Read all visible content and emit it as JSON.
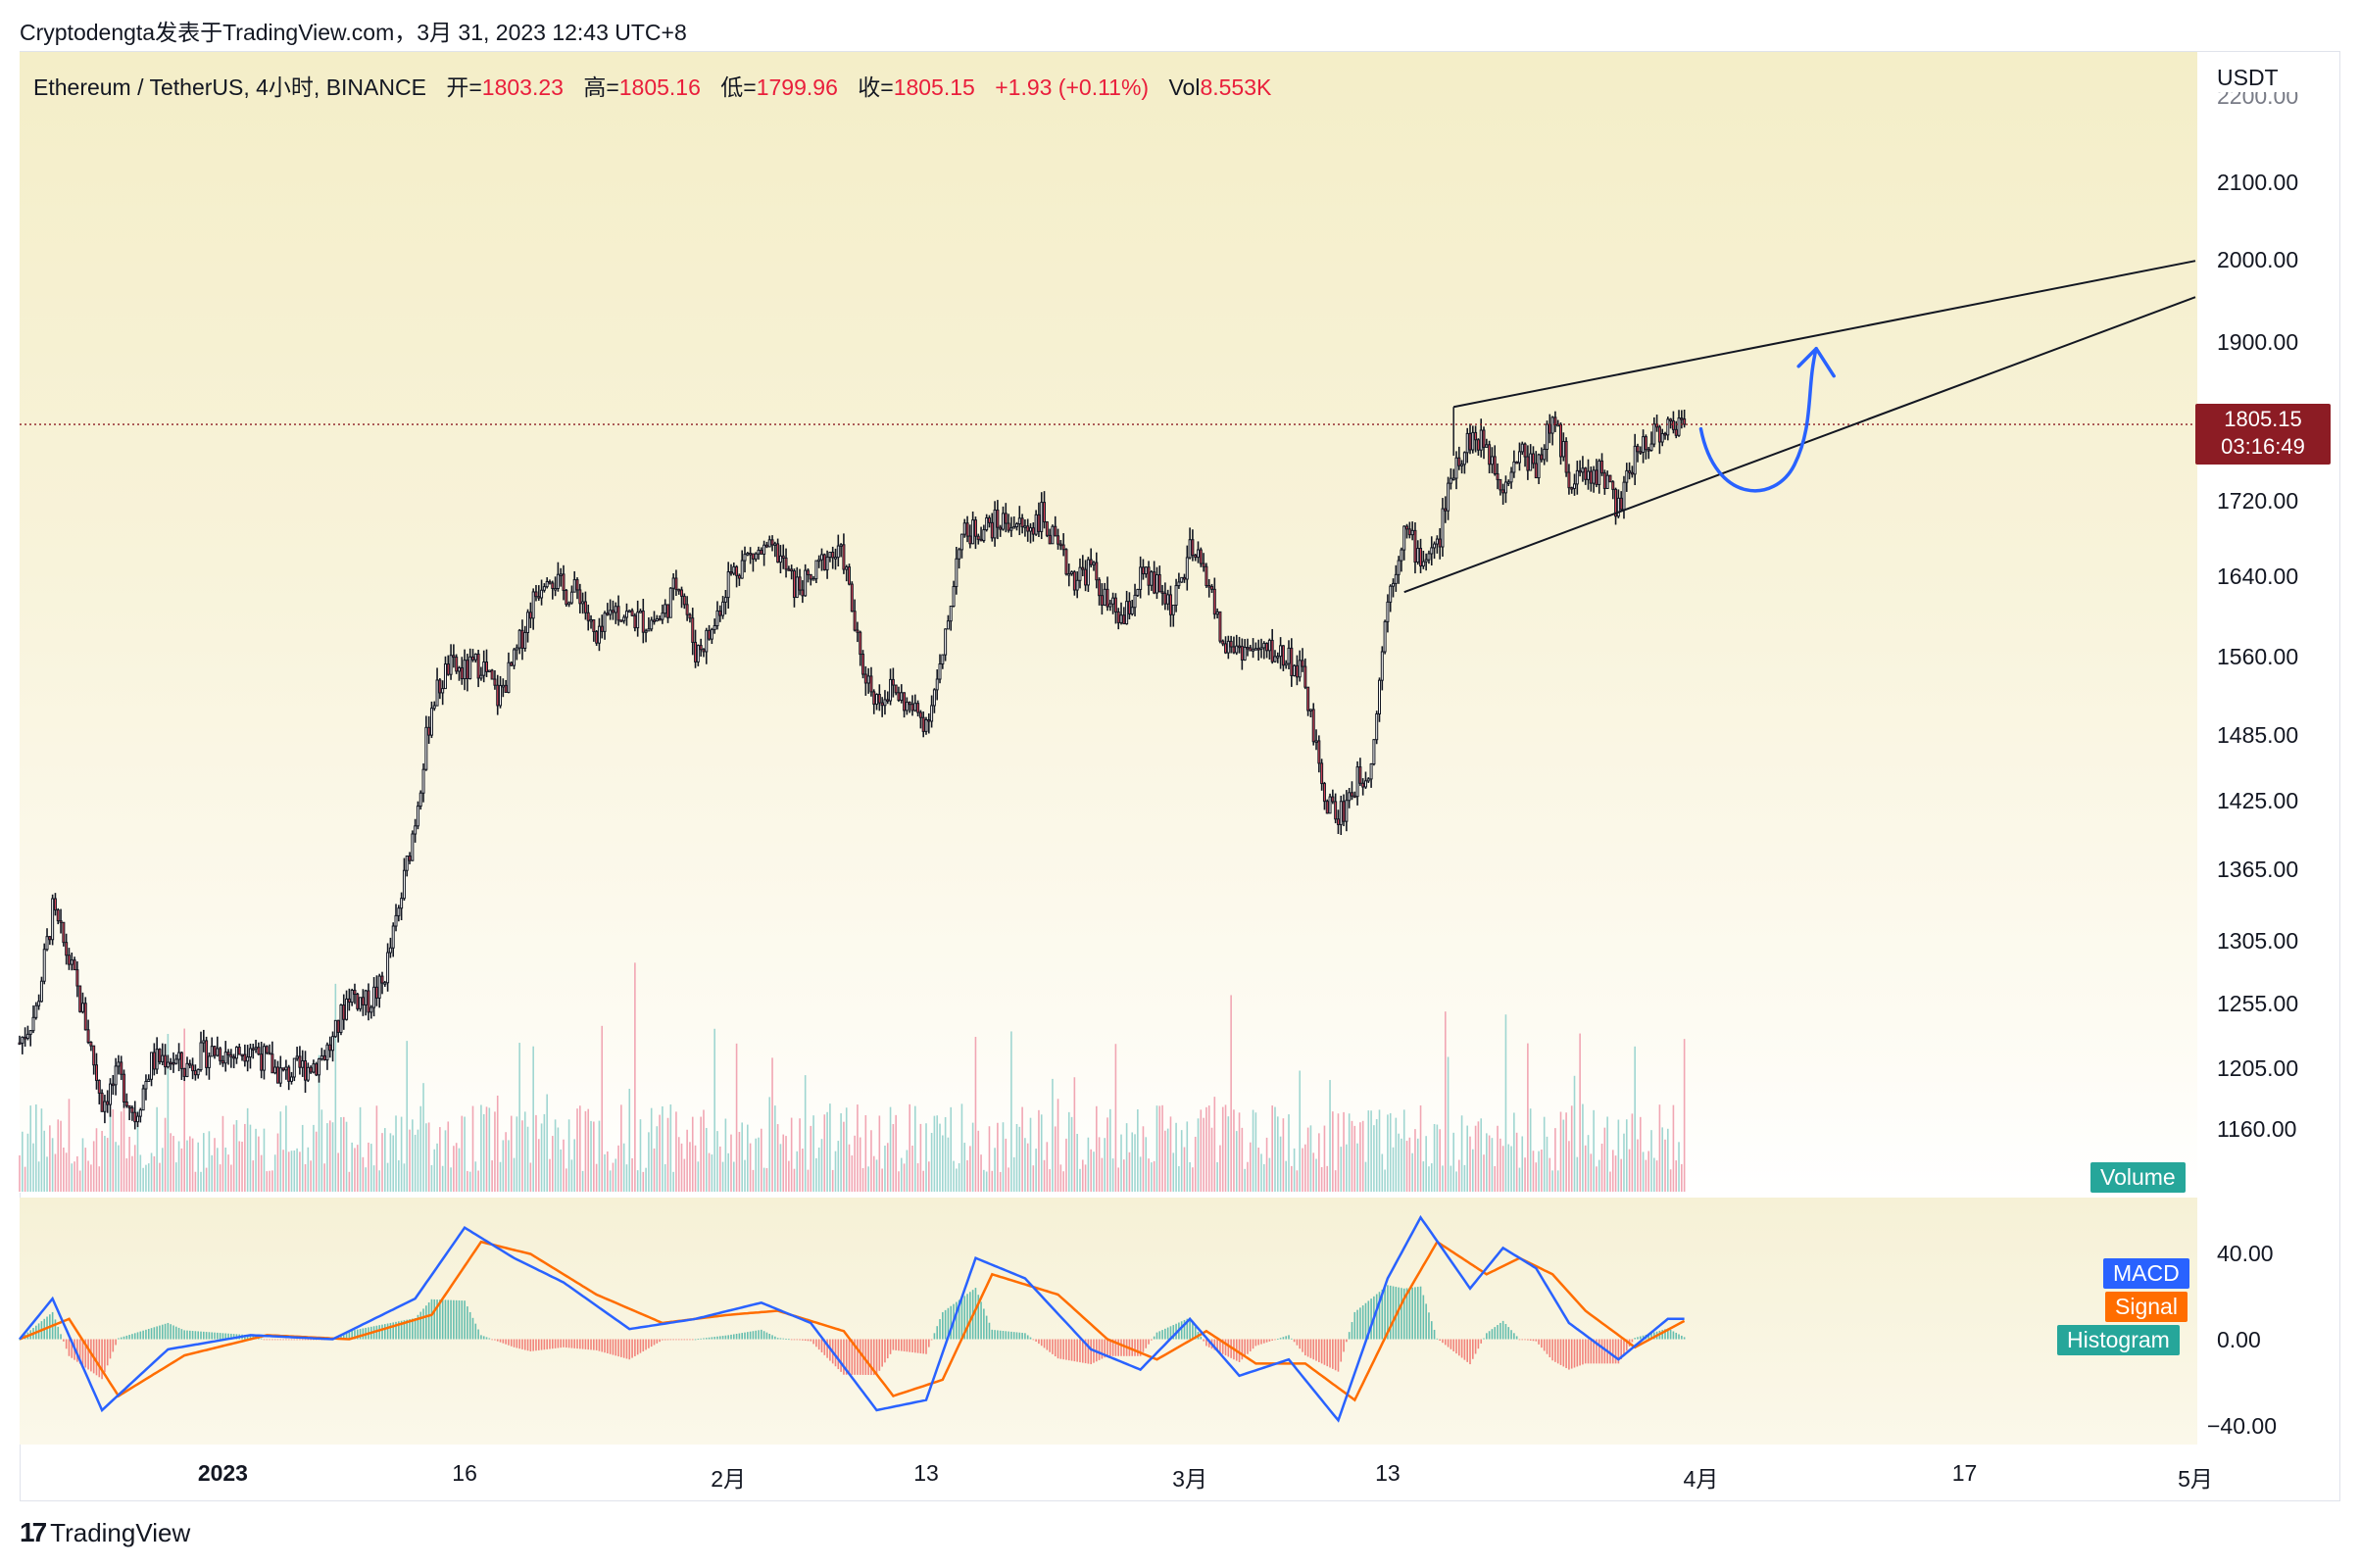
{
  "header": {
    "publish_line": "Cryptodengta发表于TradingView.com，3月 31, 2023 12:43 UTC+8"
  },
  "legend": {
    "symbol": "Ethereum / TetherUS, 4小时, BINANCE",
    "open_label": "开=",
    "open": "1803.23",
    "high_label": "高=",
    "high": "1805.16",
    "low_label": "低=",
    "low": "1799.96",
    "close_label": "收=",
    "close": "1805.15",
    "change": "+1.93 (+0.11%)",
    "vol_label": "Vol",
    "vol": "8.553K"
  },
  "axis": {
    "currency": "USDT",
    "partial_top_tick": "2200.00",
    "current_price": "1805.15",
    "countdown": "03:16:49",
    "macd_ticks": [
      "40.00",
      "0.00",
      "−40.00"
    ]
  },
  "panes": {
    "volume": "Volume",
    "macd": "MACD",
    "signal": "Signal",
    "histogram": "Histogram"
  },
  "footer": {
    "brand": "TradingView",
    "brand_mark": "17"
  },
  "colors": {
    "up": "#ffffff",
    "down": "#e0455a",
    "wick": "#131722",
    "vol_up": "#9fd6d1",
    "vol_down": "#f1a6b3",
    "macd": "#2962ff",
    "signal": "#ff6d00",
    "hist_up": "#26a69a",
    "hist_down": "#ef5350",
    "projection": "#2962ff",
    "price_tag": "#8c1c24"
  },
  "chart_data": {
    "type": "candlestick",
    "title": "Ethereum / TetherUS, 4小时, BINANCE",
    "ylabel": "USDT",
    "y_scale": "log",
    "ylim": [
      1120,
      2215
    ],
    "y_ticks": [
      2100,
      2000,
      1900,
      1720,
      1640,
      1560,
      1485,
      1425,
      1365,
      1305,
      1255,
      1205,
      1160
    ],
    "x_ticks": [
      {
        "label": "2023",
        "date": "2023-01-01",
        "bold": true
      },
      {
        "label": "16",
        "date": "2023-01-16"
      },
      {
        "label": "2月",
        "date": "2023-02-01"
      },
      {
        "label": "13",
        "date": "2023-02-13"
      },
      {
        "label": "3月",
        "date": "2023-03-01"
      },
      {
        "label": "13",
        "date": "2023-03-13"
      },
      {
        "label": "4月",
        "date": "2023-04-01"
      },
      {
        "label": "17",
        "date": "2023-04-17"
      },
      {
        "label": "5月",
        "date": "2023-05-01"
      }
    ],
    "xlim": [
      "2022-12-20",
      "2023-05-01"
    ],
    "current_price": 1805.15,
    "price_path": [
      [
        "2022-12-20",
        1225
      ],
      [
        "2022-12-21",
        1250
      ],
      [
        "2022-12-22",
        1330
      ],
      [
        "2022-12-23",
        1290
      ],
      [
        "2022-12-24",
        1240
      ],
      [
        "2022-12-25",
        1180
      ],
      [
        "2022-12-26",
        1200
      ],
      [
        "2022-12-27",
        1170
      ],
      [
        "2022-12-28",
        1210
      ],
      [
        "2022-12-29",
        1215
      ],
      [
        "2022-12-30",
        1205
      ],
      [
        "2022-12-31",
        1215
      ],
      [
        "2023-01-01",
        1220
      ],
      [
        "2023-01-02",
        1215
      ],
      [
        "2023-01-03",
        1225
      ],
      [
        "2023-01-04",
        1210
      ],
      [
        "2023-01-05",
        1200
      ],
      [
        "2023-01-06",
        1205
      ],
      [
        "2023-01-07",
        1210
      ],
      [
        "2023-01-08",
        1225
      ],
      [
        "2023-01-09",
        1265
      ],
      [
        "2023-01-10",
        1255
      ],
      [
        "2023-01-11",
        1270
      ],
      [
        "2023-01-12",
        1330
      ],
      [
        "2023-01-13",
        1410
      ],
      [
        "2023-01-14",
        1515
      ],
      [
        "2023-01-15",
        1550
      ],
      [
        "2023-01-16",
        1545
      ],
      [
        "2023-01-17",
        1555
      ],
      [
        "2023-01-18",
        1520
      ],
      [
        "2023-01-19",
        1555
      ],
      [
        "2023-01-20",
        1610
      ],
      [
        "2023-01-21",
        1650
      ],
      [
        "2023-01-22",
        1625
      ],
      [
        "2023-01-23",
        1625
      ],
      [
        "2023-01-24",
        1570
      ],
      [
        "2023-01-25",
        1610
      ],
      [
        "2023-01-26",
        1600
      ],
      [
        "2023-01-27",
        1595
      ],
      [
        "2023-01-28",
        1600
      ],
      [
        "2023-01-29",
        1640
      ],
      [
        "2023-01-30",
        1565
      ],
      [
        "2023-01-31",
        1585
      ],
      [
        "2023-02-01",
        1640
      ],
      [
        "2023-02-02",
        1660
      ],
      [
        "2023-02-03",
        1665
      ],
      [
        "2023-02-04",
        1665
      ],
      [
        "2023-02-05",
        1630
      ],
      [
        "2023-02-06",
        1635
      ],
      [
        "2023-02-07",
        1665
      ],
      [
        "2023-02-08",
        1660
      ],
      [
        "2023-02-09",
        1555
      ],
      [
        "2023-02-10",
        1520
      ],
      [
        "2023-02-11",
        1530
      ],
      [
        "2023-02-12",
        1510
      ],
      [
        "2023-02-13",
        1500
      ],
      [
        "2023-02-14",
        1555
      ],
      [
        "2023-02-15",
        1680
      ],
      [
        "2023-02-16",
        1690
      ],
      [
        "2023-02-17",
        1695
      ],
      [
        "2023-02-18",
        1700
      ],
      [
        "2023-02-19",
        1690
      ],
      [
        "2023-02-20",
        1705
      ],
      [
        "2023-02-21",
        1665
      ],
      [
        "2023-02-22",
        1640
      ],
      [
        "2023-02-23",
        1650
      ],
      [
        "2023-02-24",
        1610
      ],
      [
        "2023-02-25",
        1595
      ],
      [
        "2023-02-26",
        1640
      ],
      [
        "2023-02-27",
        1630
      ],
      [
        "2023-02-28",
        1610
      ],
      [
        "2023-03-01",
        1665
      ],
      [
        "2023-03-02",
        1645
      ],
      [
        "2023-03-03",
        1570
      ],
      [
        "2023-03-04",
        1570
      ],
      [
        "2023-03-05",
        1565
      ],
      [
        "2023-03-06",
        1565
      ],
      [
        "2023-03-07",
        1560
      ],
      [
        "2023-03-08",
        1535
      ],
      [
        "2023-03-09",
        1435
      ],
      [
        "2023-03-10",
        1410
      ],
      [
        "2023-03-11",
        1440
      ],
      [
        "2023-03-12",
        1460
      ],
      [
        "2023-03-13",
        1620
      ],
      [
        "2023-03-14",
        1690
      ],
      [
        "2023-03-15",
        1660
      ],
      [
        "2023-03-16",
        1670
      ],
      [
        "2023-03-17",
        1760
      ],
      [
        "2023-03-18",
        1790
      ],
      [
        "2023-03-19",
        1780
      ],
      [
        "2023-03-20",
        1740
      ],
      [
        "2023-03-21",
        1775
      ],
      [
        "2023-03-22",
        1760
      ],
      [
        "2023-03-23",
        1810
      ],
      [
        "2023-03-24",
        1750
      ],
      [
        "2023-03-25",
        1745
      ],
      [
        "2023-03-26",
        1755
      ],
      [
        "2023-03-27",
        1710
      ],
      [
        "2023-03-28",
        1770
      ],
      [
        "2023-03-29",
        1795
      ],
      [
        "2023-03-30",
        1800
      ],
      [
        "2023-03-31",
        1805.15
      ]
    ],
    "key_levels": {
      "jan_low": 1150,
      "dec_high": 1350,
      "jan_high": 1700,
      "feb_high": 1740,
      "mar10_low": 1370,
      "mar_high": 1835,
      "mar28_low": 1685
    },
    "macd": {
      "macd": [
        [
          "2022-12-20",
          0
        ],
        [
          "2022-12-22",
          20
        ],
        [
          "2022-12-25",
          -35
        ],
        [
          "2022-12-29",
          -5
        ],
        [
          "2023-01-03",
          2
        ],
        [
          "2023-01-08",
          0
        ],
        [
          "2023-01-13",
          20
        ],
        [
          "2023-01-16",
          55
        ],
        [
          "2023-01-19",
          40
        ],
        [
          "2023-01-22",
          28
        ],
        [
          "2023-01-26",
          5
        ],
        [
          "2023-01-30",
          10
        ],
        [
          "2023-02-03",
          18
        ],
        [
          "2023-02-06",
          8
        ],
        [
          "2023-02-10",
          -35
        ],
        [
          "2023-02-13",
          -30
        ],
        [
          "2023-02-16",
          40
        ],
        [
          "2023-02-19",
          30
        ],
        [
          "2023-02-23",
          -5
        ],
        [
          "2023-02-26",
          -15
        ],
        [
          "2023-03-01",
          10
        ],
        [
          "2023-03-04",
          -18
        ],
        [
          "2023-03-07",
          -10
        ],
        [
          "2023-03-10",
          -40
        ],
        [
          "2023-03-13",
          30
        ],
        [
          "2023-03-15",
          60
        ],
        [
          "2023-03-18",
          25
        ],
        [
          "2023-03-20",
          45
        ],
        [
          "2023-03-22",
          35
        ],
        [
          "2023-03-24",
          8
        ],
        [
          "2023-03-27",
          -10
        ],
        [
          "2023-03-30",
          10
        ],
        [
          "2023-03-31",
          10
        ]
      ],
      "signal": [
        [
          "2022-12-20",
          0
        ],
        [
          "2022-12-23",
          10
        ],
        [
          "2022-12-26",
          -28
        ],
        [
          "2022-12-30",
          -8
        ],
        [
          "2023-01-04",
          2
        ],
        [
          "2023-01-09",
          0
        ],
        [
          "2023-01-14",
          12
        ],
        [
          "2023-01-17",
          48
        ],
        [
          "2023-01-20",
          42
        ],
        [
          "2023-01-24",
          22
        ],
        [
          "2023-01-28",
          8
        ],
        [
          "2023-02-01",
          12
        ],
        [
          "2023-02-04",
          14
        ],
        [
          "2023-02-08",
          4
        ],
        [
          "2023-02-11",
          -28
        ],
        [
          "2023-02-14",
          -20
        ],
        [
          "2023-02-17",
          32
        ],
        [
          "2023-02-21",
          22
        ],
        [
          "2023-02-24",
          0
        ],
        [
          "2023-02-27",
          -10
        ],
        [
          "2023-03-02",
          4
        ],
        [
          "2023-03-05",
          -12
        ],
        [
          "2023-03-08",
          -12
        ],
        [
          "2023-03-11",
          -30
        ],
        [
          "2023-03-14",
          20
        ],
        [
          "2023-03-16",
          48
        ],
        [
          "2023-03-19",
          32
        ],
        [
          "2023-03-21",
          40
        ],
        [
          "2023-03-23",
          32
        ],
        [
          "2023-03-25",
          14
        ],
        [
          "2023-03-28",
          -4
        ],
        [
          "2023-03-31",
          9
        ]
      ],
      "ylim": [
        -50,
        65
      ]
    },
    "drawings": {
      "wedge_upper": [
        [
          "2023-03-17",
          1825
        ],
        [
          "2023-05-01",
          2000
        ]
      ],
      "wedge_lower": [
        [
          "2023-03-14",
          1625
        ],
        [
          "2023-05-01",
          1955
        ]
      ],
      "projection": "curved arrow from current price dipping then rising to upper wedge line"
    }
  }
}
